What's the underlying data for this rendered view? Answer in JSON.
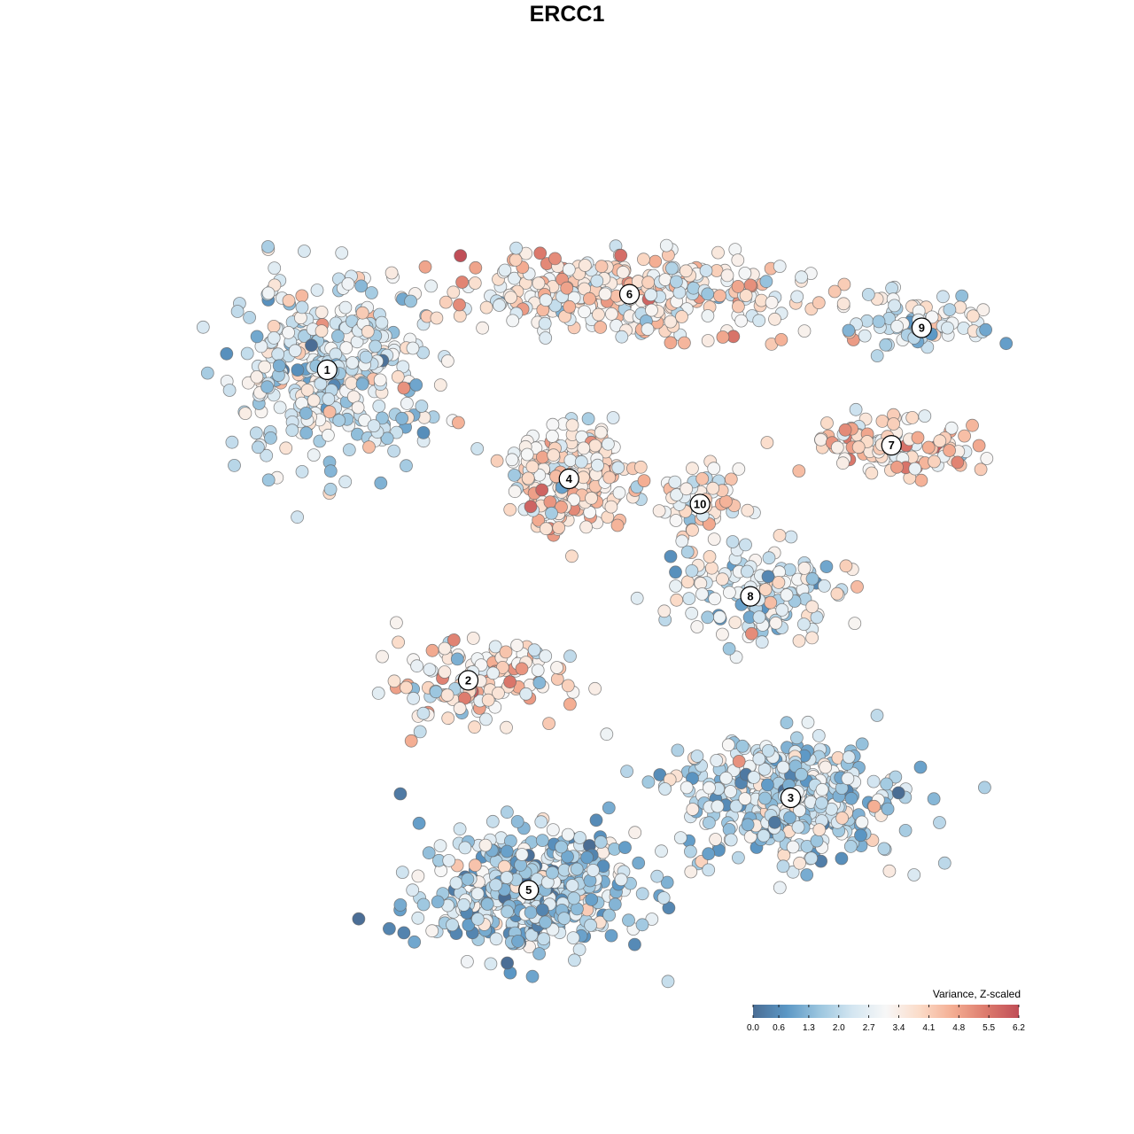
{
  "chart_data": {
    "type": "scatter",
    "title": "ERCC1",
    "colorbar": {
      "title": "Variance, Z-scaled",
      "ticks": [
        "0.0",
        "0.6",
        "1.3",
        "2.0",
        "2.7",
        "3.4",
        "4.1",
        "4.8",
        "5.5",
        "6.2"
      ],
      "range": [
        0.0,
        6.2
      ],
      "colors": [
        "#4a6d94",
        "#5b97c5",
        "#9cc6df",
        "#d4e6f1",
        "#f7f7f7",
        "#fbdcc9",
        "#f4ae93",
        "#dd7b6d",
        "#c04e57"
      ],
      "placement": "bottom-right"
    },
    "clusters": [
      {
        "label": "1",
        "x": -26,
        "y": 24,
        "spread": [
          8,
          9
        ],
        "value": 2.4,
        "n": 360
      },
      {
        "label": "2",
        "x": -12,
        "y": -13,
        "spread": [
          8,
          4
        ],
        "value": 3.5,
        "n": 140
      },
      {
        "label": "3",
        "x": 20,
        "y": -27,
        "spread": [
          9,
          6
        ],
        "value": 2.1,
        "n": 420
      },
      {
        "label": "4",
        "x": -2,
        "y": 11,
        "spread": [
          5,
          5
        ],
        "value": 3.6,
        "n": 220
      },
      {
        "label": "5",
        "x": -6,
        "y": -38,
        "spread": [
          9,
          6
        ],
        "value": 1.8,
        "n": 460
      },
      {
        "label": "6",
        "x": 4,
        "y": 33,
        "spread": [
          16,
          4
        ],
        "value": 3.5,
        "n": 320
      },
      {
        "label": "7",
        "x": 30,
        "y": 15,
        "spread": [
          7,
          3
        ],
        "value": 3.8,
        "n": 110
      },
      {
        "label": "8",
        "x": 16,
        "y": -3,
        "spread": [
          8,
          5
        ],
        "value": 2.6,
        "n": 140
      },
      {
        "label": "9",
        "x": 33,
        "y": 29,
        "spread": [
          5,
          3
        ],
        "value": 2.5,
        "n": 70
      },
      {
        "label": "10",
        "x": 11,
        "y": 8,
        "spread": [
          4,
          4
        ],
        "value": 3.4,
        "n": 60
      }
    ],
    "xlim": [
      -40,
      40
    ],
    "ylim": [
      -47,
      48
    ]
  }
}
